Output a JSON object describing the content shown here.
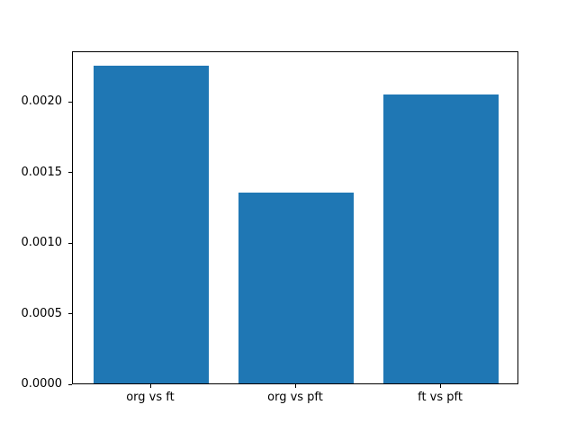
{
  "chart_data": {
    "type": "bar",
    "categories": [
      "org vs ft",
      "org vs pft",
      "ft vs pft"
    ],
    "values": [
      0.00225,
      0.00135,
      0.00205
    ],
    "title": "",
    "xlabel": "",
    "ylabel": "",
    "ylim": [
      0,
      0.00236
    ],
    "yticks": [
      0,
      0.0005,
      0.001,
      0.0015,
      0.002
    ],
    "ytick_labels": [
      "0.0000",
      "0.0005",
      "0.0010",
      "0.0015",
      "0.0020"
    ],
    "bar_color": "#1f77b4",
    "background_color": "#ffffff",
    "grid": false,
    "legend": false
  }
}
